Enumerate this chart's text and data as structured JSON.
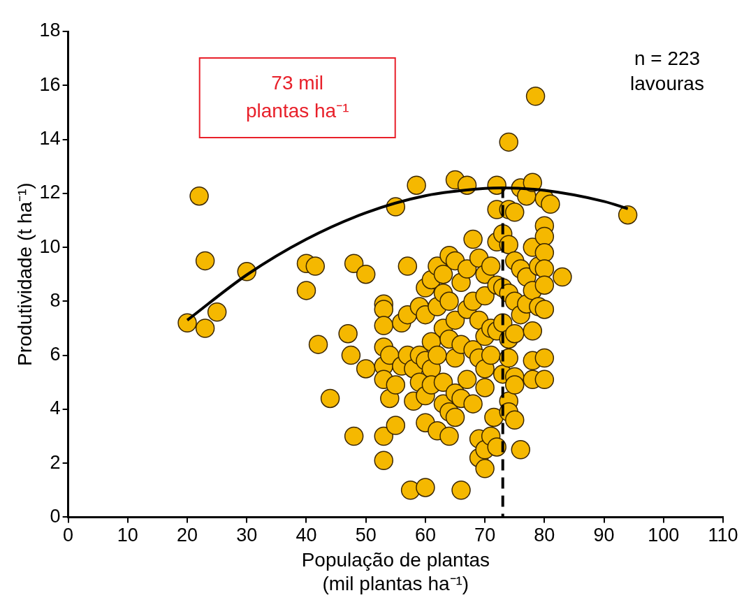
{
  "chart_data": {
    "type": "scatter",
    "xlabel": "População de plantas\n(mil plantas ha⁻¹)",
    "ylabel": "Produtividade (t ha⁻¹)",
    "xlim": [
      0,
      110
    ],
    "xticks": [
      0,
      10,
      20,
      30,
      40,
      50,
      60,
      70,
      80,
      90,
      100,
      110
    ],
    "ylim": [
      0,
      18
    ],
    "yticks": [
      0,
      2,
      4,
      6,
      8,
      10,
      12,
      14,
      16,
      18
    ],
    "legend": false,
    "marker": "circle",
    "annotations": [
      "73 mil\nplantas ha⁻¹",
      "n = 223\nlavouras"
    ],
    "ref_lines": [
      {
        "axis": "x",
        "value": 73,
        "color": "#000000",
        "line_style": "dashed"
      }
    ],
    "series": [
      {
        "color": "#f5b800",
        "x": [
          20,
          22,
          23,
          23,
          25,
          30,
          40,
          41.5,
          40,
          42,
          44,
          47,
          47.5,
          48,
          48,
          50,
          50,
          53,
          53,
          53,
          53,
          53,
          53,
          53,
          53,
          54,
          54,
          55,
          55,
          55,
          56,
          56,
          57,
          57,
          57,
          57.5,
          58,
          58,
          58.5,
          59,
          59,
          59,
          60,
          60,
          60,
          60,
          60,
          60,
          61,
          61,
          61,
          61,
          62,
          62,
          62,
          62,
          63,
          63,
          63,
          63,
          63,
          64,
          64,
          64,
          64,
          64,
          65,
          65,
          65,
          65,
          65,
          65,
          66,
          66,
          66,
          66,
          67,
          67,
          67,
          67,
          68,
          68,
          68,
          68,
          69,
          69,
          69,
          69,
          69,
          70,
          70,
          70,
          70,
          70,
          70,
          70,
          71,
          71,
          71,
          71,
          71.5,
          72,
          72,
          72,
          72,
          72,
          72,
          73,
          73,
          73,
          73,
          74,
          74,
          74,
          74,
          74,
          74,
          74,
          74,
          75,
          75,
          75,
          75,
          75,
          75,
          75,
          76,
          76,
          76,
          76,
          77,
          77,
          77,
          78,
          78,
          78,
          78,
          78,
          78,
          78.5,
          79,
          79,
          80,
          80,
          80,
          80,
          80,
          80,
          80,
          80,
          80,
          81,
          83,
          94
        ],
        "values": [
          7.2,
          11.9,
          9.5,
          7.0,
          7.6,
          9.1,
          9.4,
          9.3,
          8.4,
          6.4,
          4.4,
          6.8,
          6.0,
          9.4,
          3.0,
          9.0,
          5.5,
          2.1,
          3.0,
          7.9,
          7.7,
          7.1,
          6.3,
          5.6,
          5.1,
          6.0,
          4.4,
          4.9,
          3.4,
          11.5,
          5.6,
          7.2,
          9.3,
          6.0,
          7.5,
          1.0,
          4.3,
          5.5,
          12.3,
          7.8,
          6.0,
          5.0,
          8.5,
          7.5,
          5.8,
          4.5,
          3.5,
          1.1,
          8.8,
          6.5,
          5.5,
          4.9,
          9.3,
          7.8,
          6.0,
          3.2,
          9.0,
          8.3,
          7.0,
          5.0,
          4.2,
          9.7,
          8.0,
          6.6,
          3.9,
          3.0,
          12.5,
          9.5,
          7.3,
          5.9,
          4.6,
          3.7,
          8.7,
          6.4,
          4.4,
          1.0,
          12.3,
          9.2,
          7.7,
          5.1,
          10.3,
          8.0,
          6.2,
          4.2,
          9.6,
          7.3,
          5.9,
          2.9,
          2.2,
          9.0,
          8.2,
          6.7,
          5.5,
          4.8,
          2.5,
          1.8,
          9.3,
          7.0,
          6.0,
          3.0,
          3.7,
          12.3,
          11.4,
          10.2,
          8.6,
          6.9,
          2.6,
          10.5,
          8.5,
          7.2,
          5.3,
          13.9,
          11.4,
          10.1,
          8.3,
          6.6,
          5.9,
          4.3,
          3.9,
          11.3,
          9.5,
          8.0,
          6.8,
          5.2,
          4.9,
          3.6,
          12.2,
          9.2,
          7.5,
          2.5,
          8.9,
          7.9,
          11.9,
          12.4,
          10.0,
          8.4,
          6.9,
          5.8,
          5.1,
          15.6,
          9.3,
          7.8,
          11.8,
          10.8,
          10.4,
          9.8,
          9.2,
          8.6,
          7.7,
          5.9,
          5.1,
          11.6,
          8.9,
          11.2
        ]
      },
      {
        "type": "line",
        "color": "#000000",
        "marker": "none",
        "x": [
          20,
          30,
          40,
          50,
          60,
          70,
          73,
          80,
          90,
          94
        ],
        "values": [
          7.3,
          8.98,
          10.3,
          11.28,
          11.91,
          12.18,
          12.2,
          12.11,
          11.7,
          11.43
        ]
      }
    ]
  }
}
